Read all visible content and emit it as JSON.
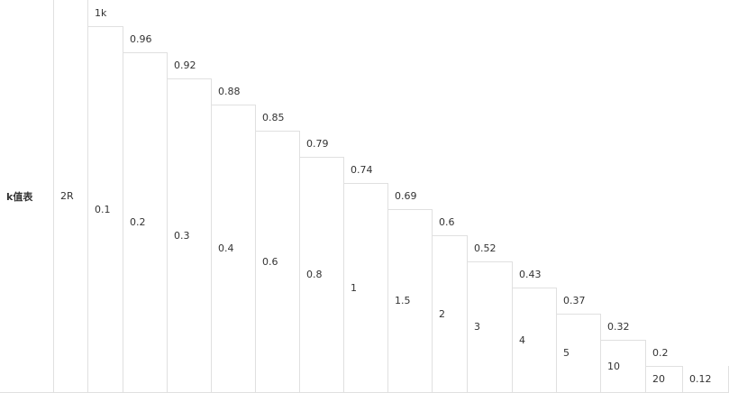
{
  "table": {
    "title": "k值表",
    "label": "2R",
    "columns": [
      {
        "top": "1k",
        "bottom": "0.1"
      },
      {
        "top": "0.96",
        "bottom": "0.2"
      },
      {
        "top": "0.92",
        "bottom": "0.3"
      },
      {
        "top": "0.88",
        "bottom": "0.4"
      },
      {
        "top": "0.85",
        "bottom": "0.6"
      },
      {
        "top": "0.79",
        "bottom": "0.8"
      },
      {
        "top": "0.74",
        "bottom": "1"
      },
      {
        "top": "0.69",
        "bottom": "1.5"
      },
      {
        "top": "0.6",
        "bottom": "2"
      },
      {
        "top": "0.52",
        "bottom": "3"
      },
      {
        "top": "0.43",
        "bottom": "4"
      },
      {
        "top": "0.37",
        "bottom": "5"
      },
      {
        "top": "0.32",
        "bottom": "10"
      },
      {
        "top": "0.2",
        "bottom": "20"
      }
    ],
    "last": "0.12"
  }
}
